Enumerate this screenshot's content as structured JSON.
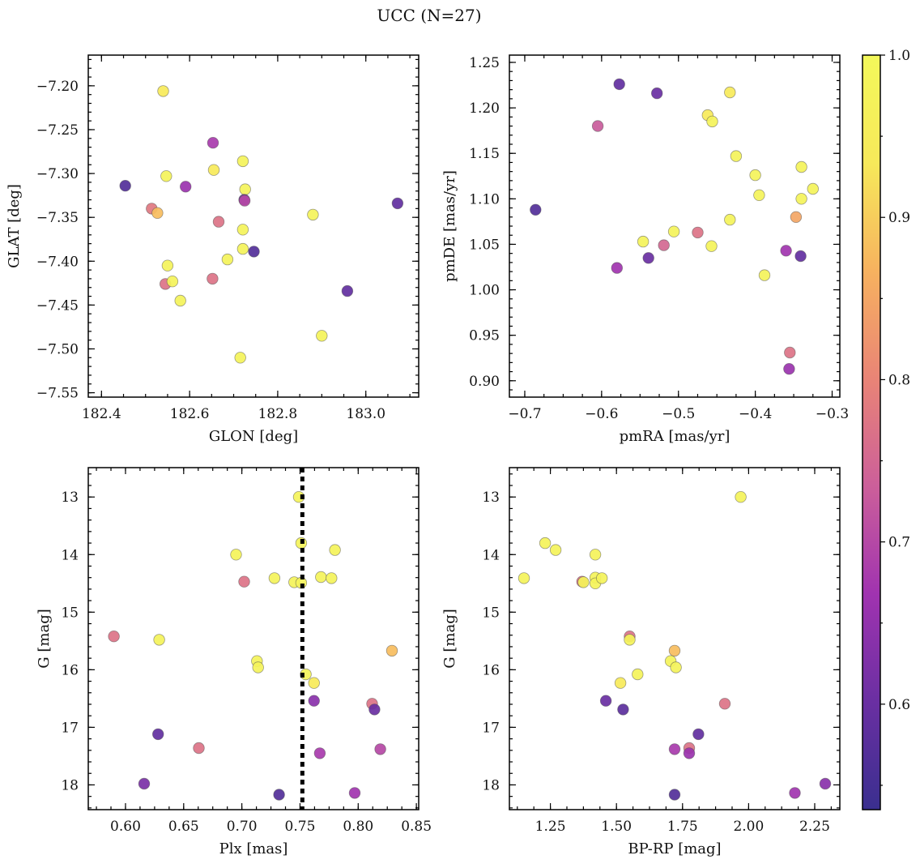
{
  "figure": {
    "title": "UCC (N=27)"
  },
  "chart_data": [
    {
      "type": "scatter",
      "panel": "top-left",
      "xlabel": "GLON [deg]",
      "ylabel": "GLAT [deg]",
      "xlim": [
        182.37,
        183.12
      ],
      "ylim": [
        -7.555,
        -7.165
      ],
      "xticks": [
        182.4,
        182.6,
        182.8,
        183.0
      ],
      "xtick_labels": [
        "182.4",
        "182.6",
        "182.8",
        "183.0"
      ],
      "yticks": [
        -7.55,
        -7.5,
        -7.45,
        -7.4,
        -7.35,
        -7.3,
        -7.25,
        -7.2
      ],
      "ytick_labels": [
        "−7.55",
        "−7.50",
        "−7.45",
        "−7.40",
        "−7.35",
        "−7.30",
        "−7.25",
        "−7.20"
      ],
      "grid": false,
      "points": [
        {
          "x": 182.54,
          "y": -7.206,
          "c": 0.94
        },
        {
          "x": 182.454,
          "y": -7.314,
          "c": 0.57
        },
        {
          "x": 182.514,
          "y": -7.34,
          "c": 0.78
        },
        {
          "x": 182.527,
          "y": -7.345,
          "c": 0.88
        },
        {
          "x": 182.547,
          "y": -7.303,
          "c": 0.98
        },
        {
          "x": 182.55,
          "y": -7.405,
          "c": 0.98
        },
        {
          "x": 182.545,
          "y": -7.426,
          "c": 0.77
        },
        {
          "x": 182.561,
          "y": -7.423,
          "c": 0.98
        },
        {
          "x": 182.579,
          "y": -7.445,
          "c": 0.98
        },
        {
          "x": 182.591,
          "y": -7.315,
          "c": 0.66
        },
        {
          "x": 182.653,
          "y": -7.265,
          "c": 0.68
        },
        {
          "x": 182.655,
          "y": -7.296,
          "c": 0.94
        },
        {
          "x": 182.652,
          "y": -7.42,
          "c": 0.77
        },
        {
          "x": 182.666,
          "y": -7.355,
          "c": 0.77
        },
        {
          "x": 182.686,
          "y": -7.398,
          "c": 0.98
        },
        {
          "x": 182.721,
          "y": -7.286,
          "c": 0.98
        },
        {
          "x": 182.726,
          "y": -7.318,
          "c": 0.98
        },
        {
          "x": 182.724,
          "y": -7.33,
          "c": 0.6
        },
        {
          "x": 182.725,
          "y": -7.331,
          "c": 0.7
        },
        {
          "x": 182.721,
          "y": -7.364,
          "c": 0.98
        },
        {
          "x": 182.721,
          "y": -7.386,
          "c": 0.98
        },
        {
          "x": 182.746,
          "y": -7.389,
          "c": 0.57
        },
        {
          "x": 182.715,
          "y": -7.51,
          "c": 0.98
        },
        {
          "x": 182.88,
          "y": -7.347,
          "c": 0.98
        },
        {
          "x": 182.9,
          "y": -7.485,
          "c": 0.98
        },
        {
          "x": 182.958,
          "y": -7.434,
          "c": 0.59
        },
        {
          "x": 183.072,
          "y": -7.334,
          "c": 0.59
        }
      ]
    },
    {
      "type": "scatter",
      "panel": "top-right",
      "xlabel": "pmRA [mas/yr]",
      "ylabel": "pmDE [mas/yr]",
      "xlim": [
        -0.72,
        -0.29
      ],
      "ylim": [
        0.882,
        1.258
      ],
      "xticks": [
        -0.7,
        -0.6,
        -0.5,
        -0.4,
        -0.3
      ],
      "xtick_labels": [
        "−0.7",
        "−0.6",
        "−0.5",
        "−0.4",
        "−0.3"
      ],
      "yticks": [
        0.9,
        0.95,
        1.0,
        1.05,
        1.1,
        1.15,
        1.2,
        1.25
      ],
      "ytick_labels": [
        "0.90",
        "0.95",
        "1.00",
        "1.05",
        "1.10",
        "1.15",
        "1.20",
        "1.25"
      ],
      "grid": false,
      "points": [
        {
          "x": -0.686,
          "y": 1.088,
          "c": 0.57
        },
        {
          "x": -0.577,
          "y": 1.226,
          "c": 0.59
        },
        {
          "x": -0.528,
          "y": 1.216,
          "c": 0.6
        },
        {
          "x": -0.605,
          "y": 1.18,
          "c": 0.73
        },
        {
          "x": -0.58,
          "y": 1.024,
          "c": 0.67
        },
        {
          "x": -0.546,
          "y": 1.053,
          "c": 0.98
        },
        {
          "x": -0.539,
          "y": 1.035,
          "c": 0.6
        },
        {
          "x": -0.519,
          "y": 1.049,
          "c": 0.75
        },
        {
          "x": -0.506,
          "y": 1.064,
          "c": 0.98
        },
        {
          "x": -0.475,
          "y": 1.063,
          "c": 0.77
        },
        {
          "x": -0.462,
          "y": 1.192,
          "c": 0.94
        },
        {
          "x": -0.456,
          "y": 1.185,
          "c": 0.98
        },
        {
          "x": -0.457,
          "y": 1.048,
          "c": 0.98
        },
        {
          "x": -0.425,
          "y": 1.147,
          "c": 0.98
        },
        {
          "x": -0.433,
          "y": 1.217,
          "c": 0.94
        },
        {
          "x": -0.433,
          "y": 1.077,
          "c": 0.98
        },
        {
          "x": -0.4,
          "y": 1.126,
          "c": 0.98
        },
        {
          "x": -0.395,
          "y": 1.104,
          "c": 0.98
        },
        {
          "x": -0.388,
          "y": 1.016,
          "c": 0.98
        },
        {
          "x": -0.36,
          "y": 1.043,
          "c": 0.67
        },
        {
          "x": -0.355,
          "y": 0.931,
          "c": 0.77
        },
        {
          "x": -0.356,
          "y": 0.913,
          "c": 0.66
        },
        {
          "x": -0.347,
          "y": 1.08,
          "c": 0.85
        },
        {
          "x": -0.34,
          "y": 1.135,
          "c": 0.98
        },
        {
          "x": -0.34,
          "y": 1.1,
          "c": 0.98
        },
        {
          "x": -0.341,
          "y": 1.037,
          "c": 0.59
        },
        {
          "x": -0.325,
          "y": 1.111,
          "c": 0.98
        }
      ]
    },
    {
      "type": "scatter",
      "panel": "bottom-left",
      "xlabel": "Plx [mas]",
      "ylabel": "G [mag]",
      "xlim": [
        0.568,
        0.852
      ],
      "ylim": [
        18.43,
        12.49
      ],
      "xticks": [
        0.6,
        0.65,
        0.7,
        0.75,
        0.8,
        0.85
      ],
      "xtick_labels": [
        "0.60",
        "0.65",
        "0.70",
        "0.75",
        "0.80",
        "0.85"
      ],
      "yticks": [
        13,
        14,
        15,
        16,
        17,
        18
      ],
      "ytick_labels": [
        "13",
        "14",
        "15",
        "16",
        "17",
        "18"
      ],
      "grid": false,
      "vline": {
        "x": 0.752
      },
      "points": [
        {
          "x": 0.749,
          "y": 13.0,
          "c": 0.98
        },
        {
          "x": 0.751,
          "y": 13.8,
          "c": 0.98
        },
        {
          "x": 0.695,
          "y": 14.0,
          "c": 0.98
        },
        {
          "x": 0.78,
          "y": 13.92,
          "c": 0.98
        },
        {
          "x": 0.702,
          "y": 14.47,
          "c": 0.77
        },
        {
          "x": 0.728,
          "y": 14.41,
          "c": 0.98
        },
        {
          "x": 0.745,
          "y": 14.48,
          "c": 0.98
        },
        {
          "x": 0.751,
          "y": 14.49,
          "c": 0.98
        },
        {
          "x": 0.768,
          "y": 14.39,
          "c": 0.98
        },
        {
          "x": 0.777,
          "y": 14.41,
          "c": 0.98
        },
        {
          "x": 0.59,
          "y": 15.42,
          "c": 0.77
        },
        {
          "x": 0.629,
          "y": 15.48,
          "c": 0.98
        },
        {
          "x": 0.713,
          "y": 15.85,
          "c": 0.98
        },
        {
          "x": 0.714,
          "y": 15.96,
          "c": 0.98
        },
        {
          "x": 0.829,
          "y": 15.67,
          "c": 0.88
        },
        {
          "x": 0.755,
          "y": 16.08,
          "c": 0.98
        },
        {
          "x": 0.762,
          "y": 16.23,
          "c": 0.94
        },
        {
          "x": 0.762,
          "y": 16.54,
          "c": 0.64
        },
        {
          "x": 0.812,
          "y": 16.59,
          "c": 0.77
        },
        {
          "x": 0.814,
          "y": 16.69,
          "c": 0.6
        },
        {
          "x": 0.628,
          "y": 17.12,
          "c": 0.59
        },
        {
          "x": 0.663,
          "y": 17.36,
          "c": 0.77
        },
        {
          "x": 0.767,
          "y": 17.45,
          "c": 0.68
        },
        {
          "x": 0.819,
          "y": 17.38,
          "c": 0.7
        },
        {
          "x": 0.616,
          "y": 17.98,
          "c": 0.62
        },
        {
          "x": 0.732,
          "y": 18.17,
          "c": 0.57
        },
        {
          "x": 0.797,
          "y": 18.14,
          "c": 0.67
        }
      ]
    },
    {
      "type": "scatter",
      "panel": "bottom-right",
      "xlabel": "BP-RP [mag]",
      "ylabel": "G [mag]",
      "xlim": [
        1.095,
        2.345
      ],
      "ylim": [
        18.43,
        12.49
      ],
      "xticks": [
        1.25,
        1.5,
        1.75,
        2.0,
        2.25
      ],
      "xtick_labels": [
        "1.25",
        "1.50",
        "1.75",
        "2.00",
        "2.25"
      ],
      "yticks": [
        13,
        14,
        15,
        16,
        17,
        18
      ],
      "ytick_labels": [
        "13",
        "14",
        "15",
        "16",
        "17",
        "18"
      ],
      "grid": false,
      "points": [
        {
          "x": 1.97,
          "y": 13.0,
          "c": 0.98
        },
        {
          "x": 1.23,
          "y": 13.8,
          "c": 0.98
        },
        {
          "x": 1.27,
          "y": 13.92,
          "c": 0.98
        },
        {
          "x": 1.42,
          "y": 14.0,
          "c": 0.98
        },
        {
          "x": 1.15,
          "y": 14.41,
          "c": 0.98
        },
        {
          "x": 1.37,
          "y": 14.47,
          "c": 0.77
        },
        {
          "x": 1.375,
          "y": 14.48,
          "c": 0.98
        },
        {
          "x": 1.42,
          "y": 14.4,
          "c": 0.98
        },
        {
          "x": 1.42,
          "y": 14.5,
          "c": 0.98
        },
        {
          "x": 1.445,
          "y": 14.41,
          "c": 0.98
        },
        {
          "x": 1.55,
          "y": 15.42,
          "c": 0.77
        },
        {
          "x": 1.55,
          "y": 15.48,
          "c": 0.98
        },
        {
          "x": 1.72,
          "y": 15.67,
          "c": 0.88
        },
        {
          "x": 1.705,
          "y": 15.85,
          "c": 0.98
        },
        {
          "x": 1.725,
          "y": 15.96,
          "c": 0.98
        },
        {
          "x": 1.58,
          "y": 16.08,
          "c": 0.98
        },
        {
          "x": 1.515,
          "y": 16.23,
          "c": 0.94
        },
        {
          "x": 1.46,
          "y": 16.54,
          "c": 0.6
        },
        {
          "x": 1.525,
          "y": 16.69,
          "c": 0.58
        },
        {
          "x": 1.91,
          "y": 16.59,
          "c": 0.77
        },
        {
          "x": 1.81,
          "y": 17.12,
          "c": 0.59
        },
        {
          "x": 1.72,
          "y": 17.38,
          "c": 0.68
        },
        {
          "x": 1.775,
          "y": 17.36,
          "c": 0.77
        },
        {
          "x": 1.775,
          "y": 17.45,
          "c": 0.66
        },
        {
          "x": 1.72,
          "y": 18.17,
          "c": 0.57
        },
        {
          "x": 2.175,
          "y": 18.14,
          "c": 0.67
        },
        {
          "x": 2.29,
          "y": 17.98,
          "c": 0.64
        }
      ]
    }
  ],
  "colorbar": {
    "colormap": "plasma",
    "range": [
      0.535,
      1.0
    ],
    "ticks": [
      0.6,
      0.7,
      0.8,
      0.9,
      1.0
    ],
    "tick_labels": [
      "0.6",
      "0.7",
      "0.8",
      "0.9",
      "1.0"
    ],
    "stops": [
      "#3a2f8f",
      "#6a2fa2",
      "#a033b0",
      "#cc5f9a",
      "#e98476",
      "#f7b25f",
      "#f7e95a",
      "#f3f85a"
    ]
  }
}
